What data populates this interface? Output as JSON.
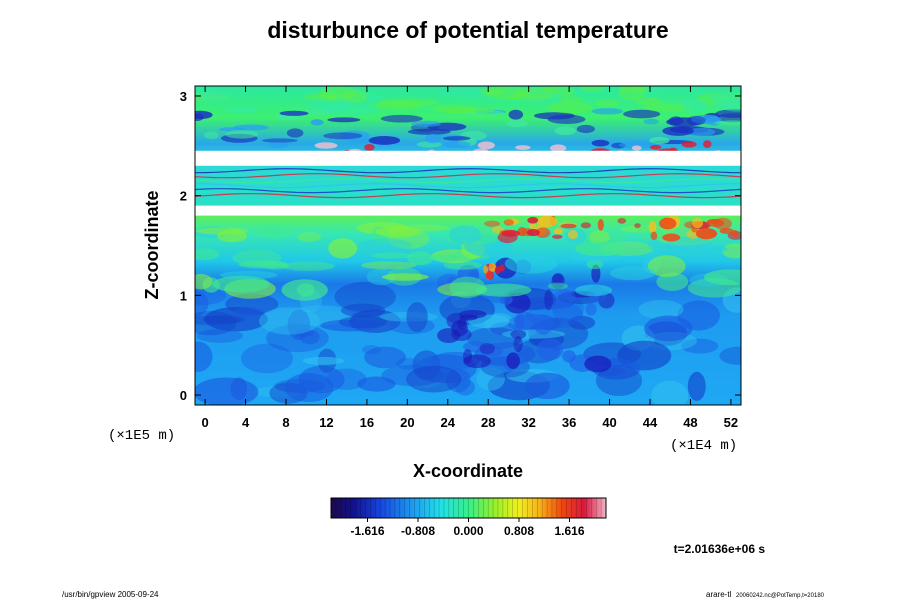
{
  "chart_data": {
    "type": "heatmap",
    "title": "disturbunce of potential temperature",
    "xlabel": "X-coordinate",
    "ylabel": "Z-coordinate",
    "x_scale_label": "(×1E4 m)",
    "y_scale_label": "(×1E5 m)",
    "xlim": [
      -1,
      53
    ],
    "ylim": [
      -0.1,
      3.1
    ],
    "x_ticks": [
      "0",
      "4",
      "8",
      "12",
      "16",
      "20",
      "24",
      "28",
      "32",
      "36",
      "40",
      "44",
      "48",
      "52"
    ],
    "y_ticks": [
      "0",
      "1",
      "2",
      "3"
    ],
    "colorbar": {
      "range": [
        -2.2,
        2.2
      ],
      "ticks": [
        "-1.616",
        "-0.808",
        "0.000",
        "0.808",
        "1.616"
      ]
    },
    "time_label": "t=2.01636e+06 s",
    "white_bands_z": [
      [
        1.8,
        1.9
      ],
      [
        2.3,
        2.45
      ]
    ]
  },
  "footer": {
    "left": "/usr/bin/gpview 2005-09-24",
    "right_main": "arare-tl",
    "right_sub": "20060242.nc@PotTemp,t=20180"
  }
}
